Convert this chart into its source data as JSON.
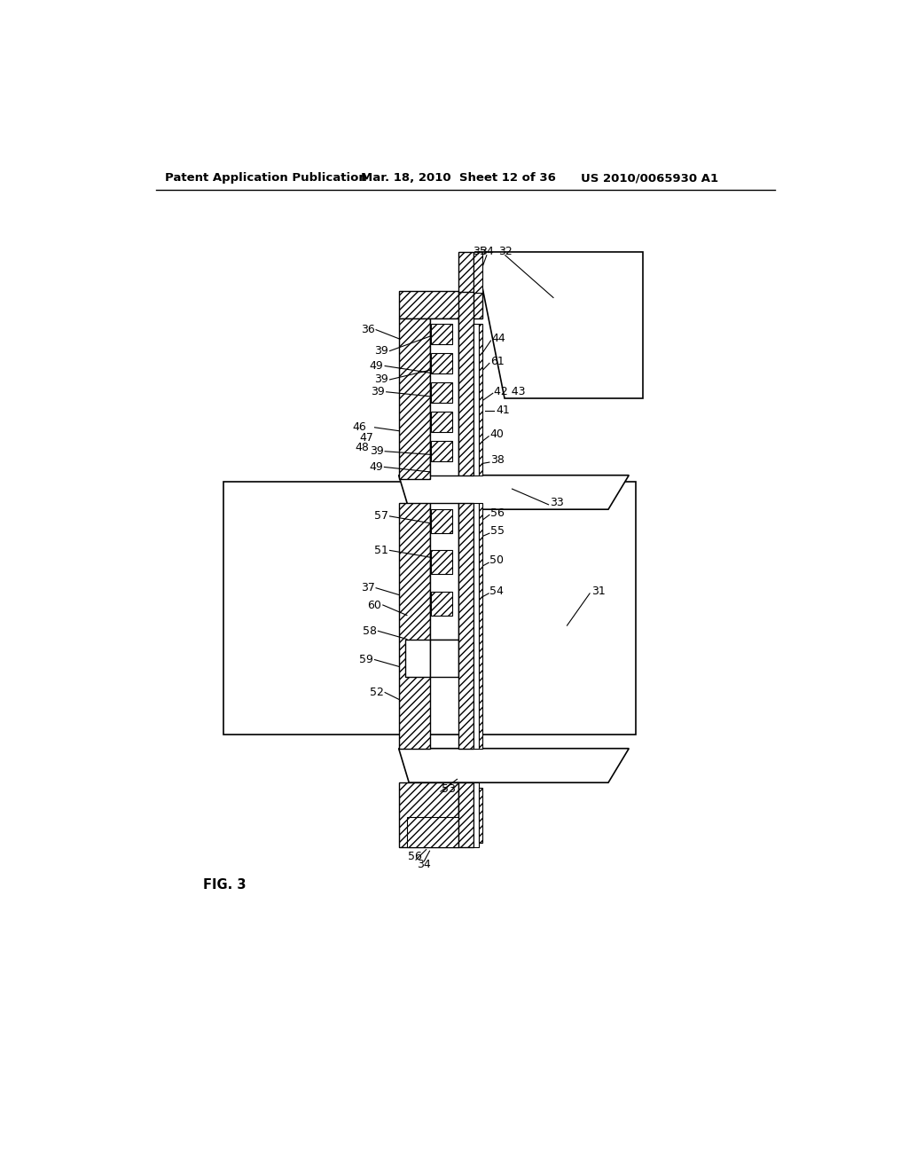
{
  "header_left": "Patent Application Publication",
  "header_mid": "Mar. 18, 2010  Sheet 12 of 36",
  "header_right": "US 2010/0065930 A1",
  "fig_label": "FIG. 3",
  "bg": "#ffffff"
}
